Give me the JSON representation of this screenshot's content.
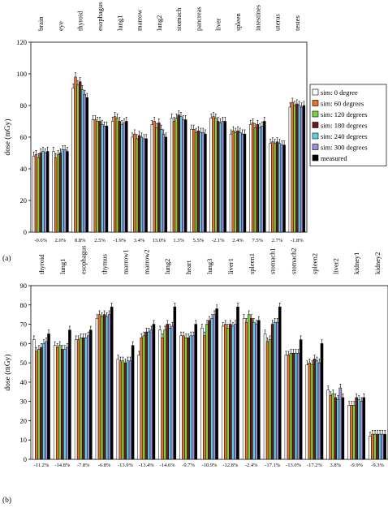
{
  "chart_data": [
    {
      "type": "bar",
      "panel_label": "(a)",
      "ylabel": "dose (mGy)",
      "ylim": [
        0,
        120
      ],
      "yticks": [
        0,
        20,
        40,
        60,
        80,
        100,
        120
      ],
      "categories": [
        "brain",
        "eye",
        "thyroid",
        "esophagus",
        "lung1",
        "marrow",
        "lung2",
        "stomach",
        "pancreas",
        "liver",
        "spleen",
        "intestines",
        "uterus",
        "testes"
      ],
      "differences": [
        "-0.6%",
        "2.0%",
        "8.8%",
        "2.5%",
        "-1.9%",
        "3.4%",
        "13.0%",
        "1.3%",
        "5.5%",
        "-2.1%",
        "2.4%",
        "7.5%",
        "2.7%",
        "-1.8%"
      ],
      "legend": {
        "placement": "right"
      },
      "series": [
        {
          "name": "sim: 0 degree",
          "color": "#ffffff",
          "values": [
            48,
            51,
            91,
            71,
            70,
            60,
            68,
            72,
            65,
            72,
            62,
            68,
            56,
            79
          ]
        },
        {
          "name": "sim: 60 degrees",
          "color": "#e8702a",
          "values": [
            49,
            47,
            98,
            71,
            73,
            62,
            70,
            70,
            65,
            73,
            64,
            69,
            57,
            82
          ]
        },
        {
          "name": "sim: 120 degrees",
          "color": "#7fd13b",
          "values": [
            47,
            49,
            93,
            70,
            72,
            59,
            66,
            72,
            63,
            72,
            63,
            66,
            56,
            80
          ]
        },
        {
          "name": "sim: 180 degrees",
          "color": "#6b1a1a",
          "values": [
            50,
            50,
            95,
            70,
            70,
            61,
            69,
            74,
            64,
            70,
            64,
            68,
            57,
            81
          ]
        },
        {
          "name": "sim: 240 degrees",
          "color": "#5fd0e0",
          "values": [
            51,
            52,
            90,
            68,
            68,
            60,
            65,
            73,
            63,
            69,
            63,
            66,
            56,
            80
          ]
        },
        {
          "name": "sim: 300 degrees",
          "color": "#9a8fd8",
          "values": [
            50,
            52,
            87,
            67,
            69,
            59,
            62,
            71,
            63,
            70,
            62,
            67,
            55,
            79
          ]
        },
        {
          "name": "measured",
          "color": "#000000",
          "values": [
            51,
            51,
            85,
            67,
            70,
            59,
            60,
            71,
            62,
            70,
            62,
            70,
            55,
            80
          ]
        }
      ]
    },
    {
      "type": "bar",
      "panel_label": "(b)",
      "ylabel": "dose (mGy)",
      "ylim": [
        0,
        90
      ],
      "yticks": [
        0,
        10,
        20,
        30,
        40,
        50,
        60,
        70,
        80,
        90
      ],
      "categories": [
        "thyroid",
        "lung1",
        "esophagus",
        "thymus",
        "marrow1",
        "marrow2",
        "lung2",
        "heart",
        "lung3",
        "liver1",
        "spleen1",
        "stomach1",
        "stomach2",
        "spleen2",
        "liver2",
        "kidney1",
        "kidney2"
      ],
      "differences": [
        "-11.2%",
        "-14.8%",
        "-7.8%",
        "-6.8%",
        "-13.9%",
        "-13.4%",
        "-14.6%",
        "-9.7%",
        "-10.9%",
        "-12.8%",
        "-2.4%",
        "-17.1%",
        "-13.0%",
        "-17.2%",
        "3.8%",
        "-9.9%",
        "-9.3%"
      ],
      "series": [
        {
          "name": "sim: 0 degree",
          "color": "#ffffff",
          "values": [
            62,
            59,
            62,
            73,
            52,
            54,
            67,
            64,
            68,
            69,
            73,
            65,
            54,
            49,
            36,
            28,
            12
          ]
        },
        {
          "name": "sim: 60 degrees",
          "color": "#e8702a",
          "values": [
            56,
            58,
            62,
            75,
            51,
            63,
            63,
            64,
            64,
            70,
            71,
            61,
            54,
            50,
            33,
            28,
            13
          ]
        },
        {
          "name": "sim: 120 degrees",
          "color": "#7fd13b",
          "values": [
            57,
            59,
            63,
            74,
            51,
            64,
            67,
            63,
            70,
            68,
            75,
            62,
            55,
            49,
            34,
            28,
            13
          ]
        },
        {
          "name": "sim: 180 degrees",
          "color": "#6b1a1a",
          "values": [
            58,
            57,
            63,
            75,
            50,
            66,
            70,
            63,
            72,
            70,
            73,
            70,
            55,
            52,
            32,
            32,
            13
          ]
        },
        {
          "name": "sim: 240 degrees",
          "color": "#5fd0e0",
          "values": [
            60,
            57,
            63,
            74,
            51,
            66,
            68,
            64,
            73,
            69,
            71,
            71,
            55,
            51,
            31,
            31,
            13
          ]
        },
        {
          "name": "sim: 300 degrees",
          "color": "#9a8fd8",
          "values": [
            61,
            58,
            64,
            75,
            51,
            67,
            69,
            64,
            75,
            70,
            70,
            71,
            55,
            50,
            37,
            30,
            13
          ]
        },
        {
          "name": "measured",
          "color": "#000000",
          "values": [
            65,
            67,
            67,
            79,
            59,
            70,
            79,
            70,
            78,
            79,
            72,
            79,
            62,
            60,
            32,
            32,
            13
          ]
        }
      ]
    }
  ]
}
